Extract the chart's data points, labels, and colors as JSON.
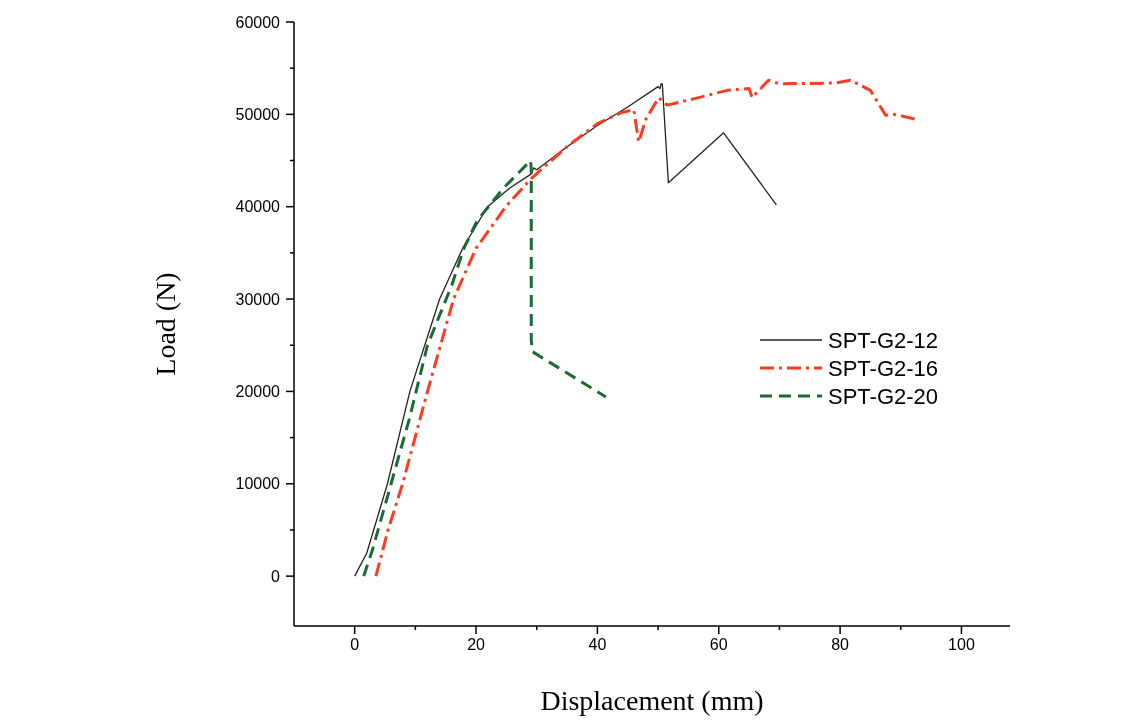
{
  "chart_data": {
    "type": "line",
    "xlabel": "Displacement (mm)",
    "ylabel": "Load (N)",
    "xlim": [
      -10,
      108
    ],
    "ylim": [
      -5400,
      60000
    ],
    "xticks": [
      0,
      {
        "value": 10,
        "label": null
      },
      20,
      {
        "value": 30,
        "label": null
      },
      40,
      {
        "value": 50,
        "label": null
      },
      60,
      {
        "value": 70,
        "label": null
      },
      80,
      {
        "value": 90,
        "label": null
      },
      100
    ],
    "yticks": [
      0,
      {
        "value": 5000,
        "label": null
      },
      10000,
      {
        "value": 15000,
        "label": null
      },
      20000,
      {
        "value": 25000,
        "label": null
      },
      30000,
      {
        "value": 35000,
        "label": null
      },
      40000,
      {
        "value": 45000,
        "label": null
      },
      50000,
      {
        "value": 55000,
        "label": null
      },
      60000
    ],
    "grid": false,
    "legend": "right",
    "series": [
      {
        "name": "SPT-G2-12",
        "color": "#222222",
        "line_style": "solid",
        "x": [
          0,
          2,
          5.4,
          9.1,
          14,
          17.8,
          21.9,
          25.5,
          29,
          29.5,
          30,
          31,
          35,
          40,
          45,
          50,
          50.3,
          50.5,
          50.7,
          51.7,
          60.8,
          69.5
        ],
        "values": [
          0,
          2500,
          10000,
          20000,
          30000,
          35500,
          40000,
          42000,
          43500,
          44200,
          44000,
          44500,
          46500,
          48800,
          50800,
          53000,
          52800,
          53300,
          53300,
          42600,
          48000,
          40200
        ]
      },
      {
        "name": "SPT-G2-16",
        "color": "#ff3b1f",
        "line_style": "dashdot",
        "x": [
          3.5,
          5.5,
          7.9,
          12,
          16.3,
          20,
          24.9,
          29,
          35,
          40,
          44,
          46,
          46.8,
          48,
          50.1,
          51.5,
          56,
          61.4,
          65,
          65.5,
          68.2,
          70,
          79.3,
          81.7,
          85,
          87.5,
          89,
          92.9
        ],
        "values": [
          0,
          5000,
          10000,
          20000,
          30000,
          35500,
          40000,
          43000,
          46500,
          49000,
          50200,
          50500,
          47000,
          49500,
          51800,
          51000,
          51700,
          52600,
          52800,
          51800,
          53700,
          53300,
          53400,
          53700,
          52600,
          49900,
          50000,
          49400
        ]
      },
      {
        "name": "SPT-G2-20",
        "color": "#1a6b35",
        "line_style": "dashed",
        "x": [
          1.5,
          3,
          6,
          9,
          12,
          16,
          18,
          20.2,
          24.5,
          29,
          29.1,
          29.1,
          29.3,
          41.4
        ],
        "values": [
          0,
          3000,
          10000,
          17000,
          25000,
          31500,
          35500,
          38500,
          42000,
          45000,
          44000,
          25600,
          24300,
          19400
        ]
      }
    ]
  }
}
